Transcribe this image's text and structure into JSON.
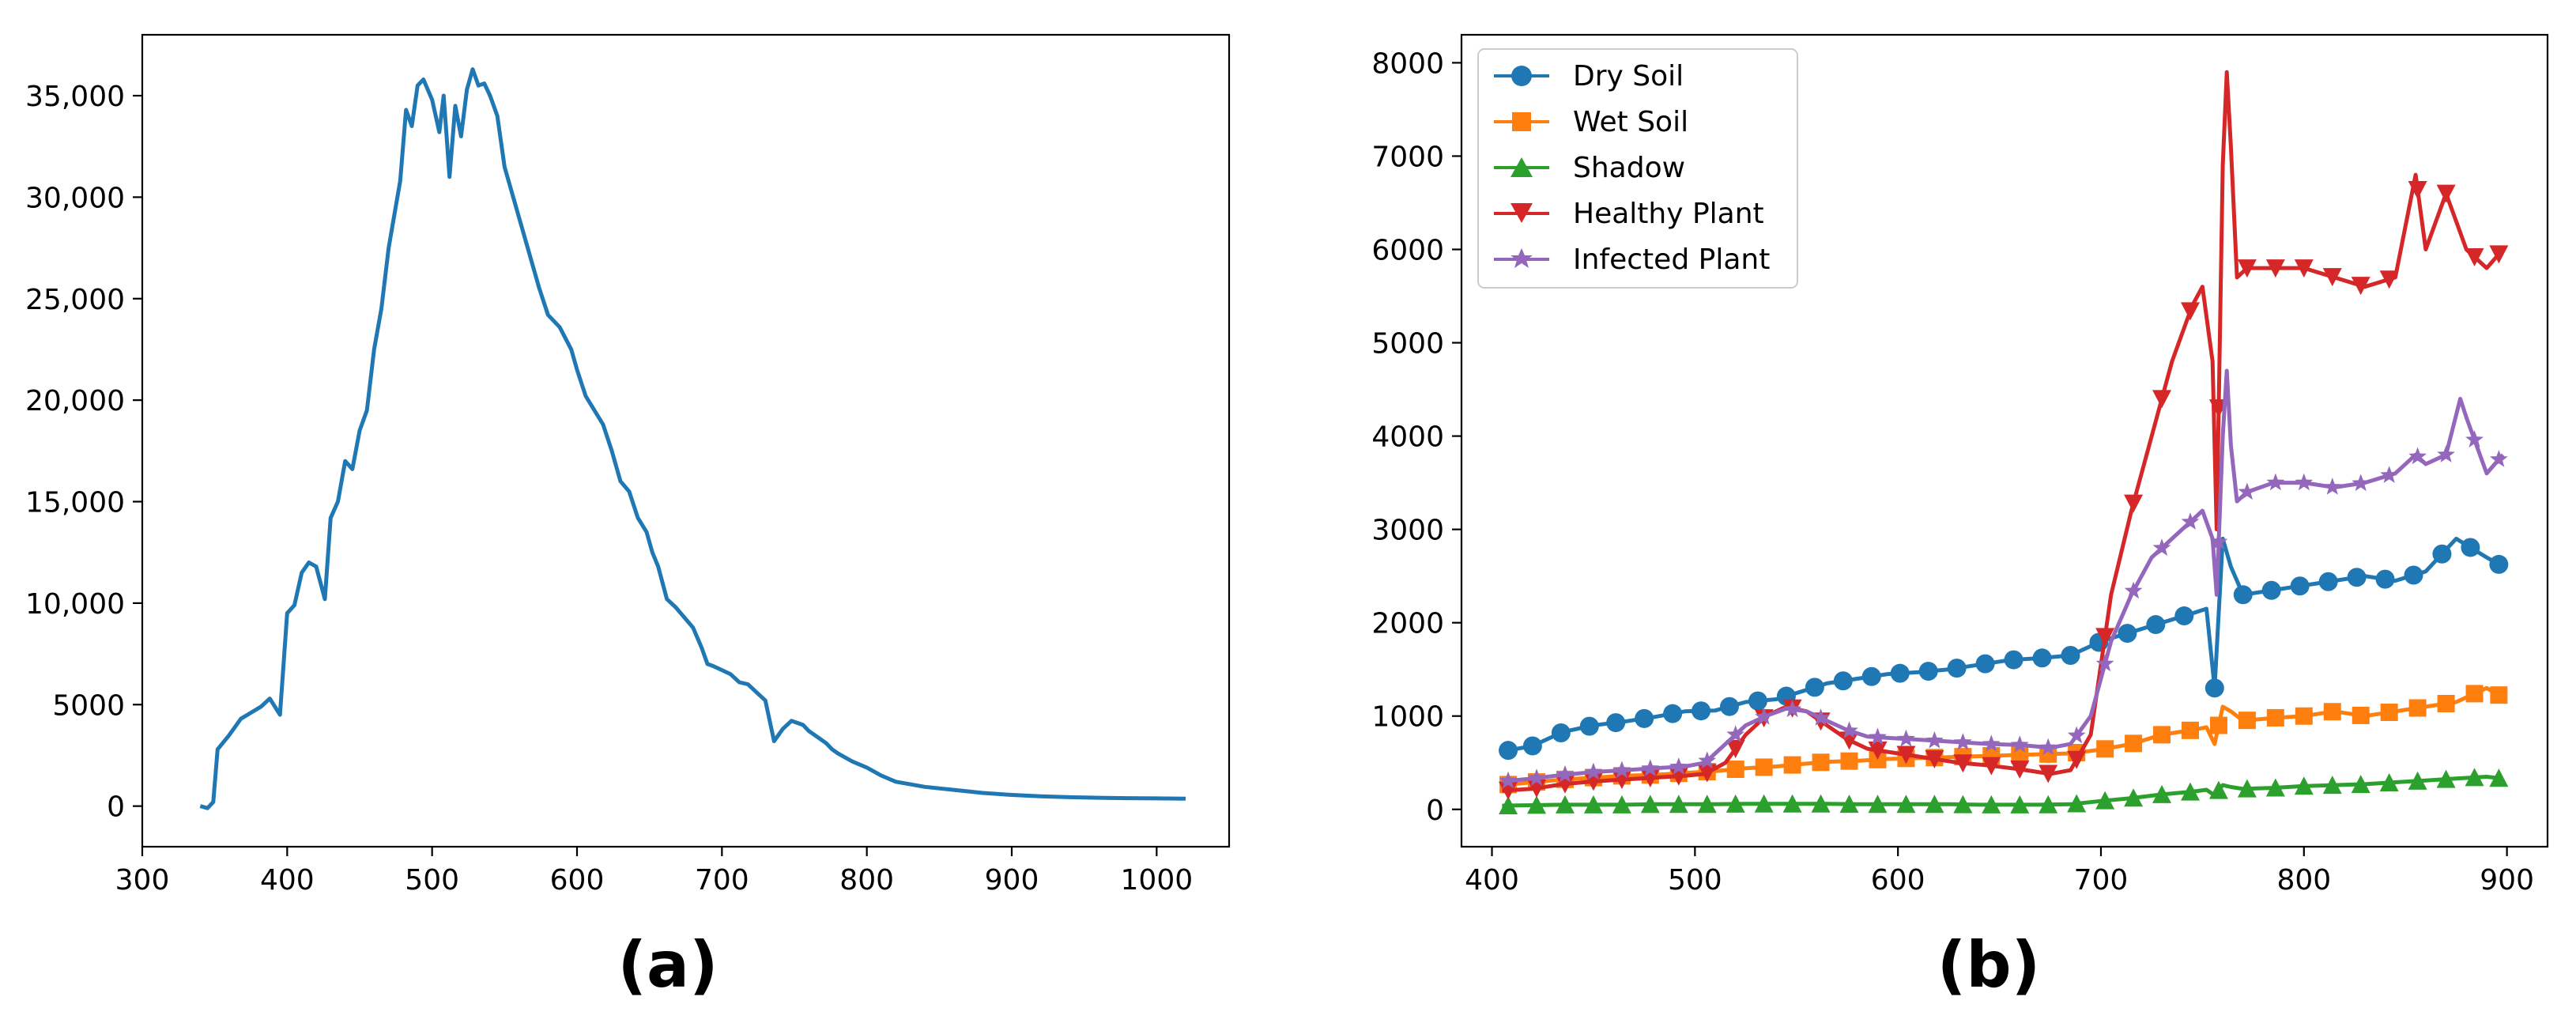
{
  "chart_data": [
    {
      "type": "line",
      "label": "(a)",
      "title": "",
      "xlabel": "",
      "ylabel": "",
      "xlim": [
        300,
        1050
      ],
      "ylim": [
        -2000,
        38000
      ],
      "xticks": [
        300,
        400,
        500,
        600,
        700,
        800,
        900,
        1000
      ],
      "xtick_labels": [
        "300",
        "400",
        "500",
        "600",
        "700",
        "800",
        "900",
        "1000"
      ],
      "yticks": [
        0,
        5000,
        10000,
        15000,
        20000,
        25000,
        30000,
        35000
      ],
      "ytick_labels": [
        "0",
        "5000",
        "10,000",
        "15,000",
        "20,000",
        "25,000",
        "30,000",
        "35,000"
      ],
      "color": "#1f77b4",
      "x": [
        340,
        345,
        349,
        352,
        360,
        368,
        375,
        382,
        388,
        395,
        400,
        405,
        410,
        415,
        420,
        426,
        430,
        435,
        440,
        445,
        450,
        455,
        460,
        465,
        470,
        478,
        482,
        486,
        490,
        494,
        500,
        505,
        508,
        512,
        516,
        520,
        524,
        528,
        532,
        536,
        540,
        545,
        550,
        556,
        562,
        568,
        574,
        580,
        588,
        596,
        600,
        606,
        612,
        618,
        624,
        630,
        636,
        642,
        648,
        652,
        656,
        662,
        668,
        674,
        680,
        686,
        690,
        694,
        700,
        706,
        712,
        718,
        724,
        730,
        736,
        742,
        748,
        752,
        756,
        760,
        764,
        768,
        772,
        776,
        780,
        790,
        800,
        810,
        820,
        840,
        860,
        880,
        900,
        920,
        940,
        960,
        980,
        1000,
        1020
      ],
      "y": [
        0,
        -100,
        200,
        2800,
        3500,
        4300,
        4600,
        4900,
        5300,
        4500,
        9500,
        9900,
        11500,
        12000,
        11800,
        10200,
        14200,
        15000,
        17000,
        16600,
        18500,
        19500,
        22500,
        24500,
        27500,
        30800,
        34300,
        33500,
        35500,
        35800,
        34800,
        33200,
        35000,
        31000,
        34500,
        33000,
        35300,
        36300,
        35500,
        35600,
        35000,
        34000,
        31500,
        30000,
        28500,
        27000,
        25500,
        24200,
        23600,
        22500,
        21500,
        20200,
        19500,
        18800,
        17500,
        16000,
        15500,
        14200,
        13500,
        12500,
        11800,
        10200,
        9800,
        9300,
        8800,
        7800,
        7000,
        6900,
        6700,
        6500,
        6100,
        6000,
        5600,
        5200,
        3200,
        3800,
        4200,
        4100,
        4000,
        3700,
        3500,
        3300,
        3100,
        2800,
        2600,
        2200,
        1900,
        1500,
        1200,
        950,
        800,
        650,
        550,
        480,
        440,
        410,
        390,
        380,
        370
      ]
    },
    {
      "type": "line",
      "label": "(b)",
      "title": "",
      "xlabel": "",
      "ylabel": "",
      "xlim": [
        385,
        920
      ],
      "ylim": [
        -400,
        8300
      ],
      "xticks": [
        400,
        500,
        600,
        700,
        800,
        900
      ],
      "xtick_labels": [
        "400",
        "500",
        "600",
        "700",
        "800",
        "900"
      ],
      "yticks": [
        0,
        1000,
        2000,
        3000,
        4000,
        5000,
        6000,
        7000,
        8000
      ],
      "ytick_labels": [
        "0",
        "1000",
        "2000",
        "3000",
        "4000",
        "5000",
        "6000",
        "7000",
        "8000"
      ],
      "legend_position": "top-left",
      "series": [
        {
          "name": "Dry Soil",
          "color": "#1f77b4",
          "marker": "circle",
          "x": [
            405,
            420,
            435,
            450,
            465,
            480,
            495,
            510,
            525,
            540,
            555,
            565,
            580,
            595,
            610,
            625,
            640,
            655,
            670,
            685,
            700,
            715,
            730,
            745,
            752,
            756,
            760,
            764,
            770,
            785,
            800,
            815,
            830,
            845,
            860,
            875,
            890,
            898
          ],
          "y": [
            620,
            680,
            830,
            900,
            940,
            990,
            1050,
            1060,
            1150,
            1180,
            1280,
            1350,
            1400,
            1450,
            1470,
            1500,
            1550,
            1600,
            1620,
            1650,
            1800,
            1900,
            2000,
            2100,
            2150,
            1300,
            2900,
            2600,
            2300,
            2350,
            2400,
            2450,
            2500,
            2450,
            2550,
            2900,
            2700,
            2600
          ],
          "marker_x": [
            408,
            420,
            434,
            448,
            461,
            475,
            489,
            503,
            517,
            531,
            545,
            559,
            573,
            587,
            601,
            615,
            629,
            643,
            657,
            671,
            685,
            699,
            713,
            727,
            741,
            756,
            770,
            784,
            798,
            812,
            826,
            840,
            854,
            868,
            882,
            896
          ]
        },
        {
          "name": "Wet Soil",
          "color": "#ff7f0e",
          "marker": "square",
          "x": [
            405,
            420,
            435,
            450,
            465,
            480,
            495,
            510,
            525,
            540,
            555,
            565,
            580,
            595,
            610,
            625,
            640,
            655,
            670,
            685,
            700,
            715,
            730,
            745,
            752,
            756,
            760,
            764,
            770,
            785,
            800,
            815,
            830,
            845,
            860,
            875,
            890,
            898
          ],
          "y": [
            260,
            290,
            320,
            340,
            360,
            370,
            390,
            410,
            440,
            460,
            490,
            510,
            520,
            540,
            550,
            560,
            570,
            580,
            590,
            600,
            640,
            700,
            800,
            850,
            880,
            700,
            1100,
            1050,
            950,
            980,
            1000,
            1050,
            1000,
            1050,
            1100,
            1150,
            1300,
            1200
          ],
          "marker_x": [
            408,
            422,
            436,
            450,
            464,
            478,
            492,
            506,
            520,
            534,
            548,
            562,
            576,
            590,
            604,
            618,
            632,
            646,
            660,
            674,
            688,
            702,
            716,
            730,
            744,
            758,
            772,
            786,
            800,
            814,
            828,
            842,
            856,
            870,
            884,
            896
          ]
        },
        {
          "name": "Shadow",
          "color": "#2ca02c",
          "marker": "triangle-up",
          "x": [
            405,
            420,
            435,
            450,
            465,
            480,
            495,
            510,
            525,
            540,
            555,
            565,
            580,
            595,
            610,
            625,
            640,
            655,
            670,
            685,
            700,
            715,
            730,
            745,
            752,
            756,
            760,
            764,
            770,
            785,
            800,
            815,
            830,
            845,
            860,
            875,
            890,
            898
          ],
          "y": [
            40,
            45,
            50,
            50,
            50,
            55,
            55,
            55,
            60,
            60,
            60,
            60,
            55,
            55,
            55,
            55,
            50,
            50,
            50,
            55,
            90,
            120,
            160,
            190,
            210,
            150,
            260,
            240,
            220,
            230,
            250,
            260,
            270,
            290,
            310,
            330,
            350,
            330
          ],
          "marker_x": [
            408,
            422,
            436,
            450,
            464,
            478,
            492,
            506,
            520,
            534,
            548,
            562,
            576,
            590,
            604,
            618,
            632,
            646,
            660,
            674,
            688,
            702,
            716,
            730,
            744,
            758,
            772,
            786,
            800,
            814,
            828,
            842,
            856,
            870,
            884,
            896
          ]
        },
        {
          "name": "Healthy Plant",
          "color": "#d62728",
          "marker": "triangle-down",
          "x": [
            405,
            420,
            435,
            450,
            465,
            480,
            495,
            505,
            515,
            525,
            535,
            545,
            555,
            565,
            575,
            585,
            600,
            615,
            630,
            645,
            660,
            675,
            685,
            695,
            705,
            715,
            725,
            735,
            745,
            750,
            755,
            757,
            760,
            762,
            764,
            767,
            772,
            785,
            800,
            815,
            830,
            845,
            855,
            860,
            870,
            880,
            890,
            898
          ],
          "y": [
            200,
            220,
            270,
            300,
            320,
            340,
            360,
            380,
            500,
            800,
            1000,
            1100,
            1050,
            900,
            750,
            650,
            600,
            550,
            500,
            470,
            430,
            380,
            420,
            800,
            2300,
            3200,
            4000,
            4800,
            5400,
            5600,
            4800,
            3000,
            6900,
            7900,
            7100,
            5700,
            5800,
            5800,
            5800,
            5700,
            5600,
            5700,
            6800,
            6000,
            6600,
            6000,
            5800,
            6000
          ],
          "marker_x": [
            408,
            422,
            436,
            450,
            464,
            478,
            492,
            506,
            520,
            534,
            548,
            562,
            576,
            590,
            604,
            618,
            632,
            646,
            660,
            674,
            688,
            702,
            716,
            730,
            744,
            758,
            772,
            786,
            800,
            814,
            828,
            842,
            856,
            870,
            884,
            896
          ]
        },
        {
          "name": "Infected Plant",
          "color": "#9467bd",
          "marker": "star",
          "x": [
            405,
            420,
            435,
            450,
            465,
            480,
            495,
            505,
            515,
            525,
            535,
            545,
            555,
            565,
            575,
            585,
            600,
            615,
            630,
            645,
            660,
            675,
            685,
            695,
            705,
            715,
            725,
            735,
            745,
            750,
            755,
            757,
            760,
            762,
            764,
            767,
            772,
            785,
            800,
            815,
            830,
            845,
            855,
            860,
            870,
            877,
            880,
            890,
            898
          ],
          "y": [
            300,
            330,
            370,
            400,
            420,
            440,
            460,
            500,
            700,
            900,
            1000,
            1080,
            1050,
            950,
            850,
            780,
            760,
            740,
            720,
            700,
            690,
            660,
            700,
            1000,
            1800,
            2300,
            2700,
            2900,
            3100,
            3200,
            2900,
            2300,
            4000,
            4700,
            3900,
            3300,
            3400,
            3500,
            3500,
            3450,
            3500,
            3600,
            3800,
            3700,
            3800,
            4400,
            4200,
            3600,
            3800
          ],
          "marker_x": [
            408,
            422,
            436,
            450,
            464,
            478,
            492,
            506,
            520,
            534,
            548,
            562,
            576,
            590,
            604,
            618,
            632,
            646,
            660,
            674,
            688,
            702,
            716,
            730,
            744,
            758,
            772,
            786,
            800,
            814,
            828,
            842,
            856,
            870,
            884,
            896
          ]
        }
      ]
    }
  ]
}
